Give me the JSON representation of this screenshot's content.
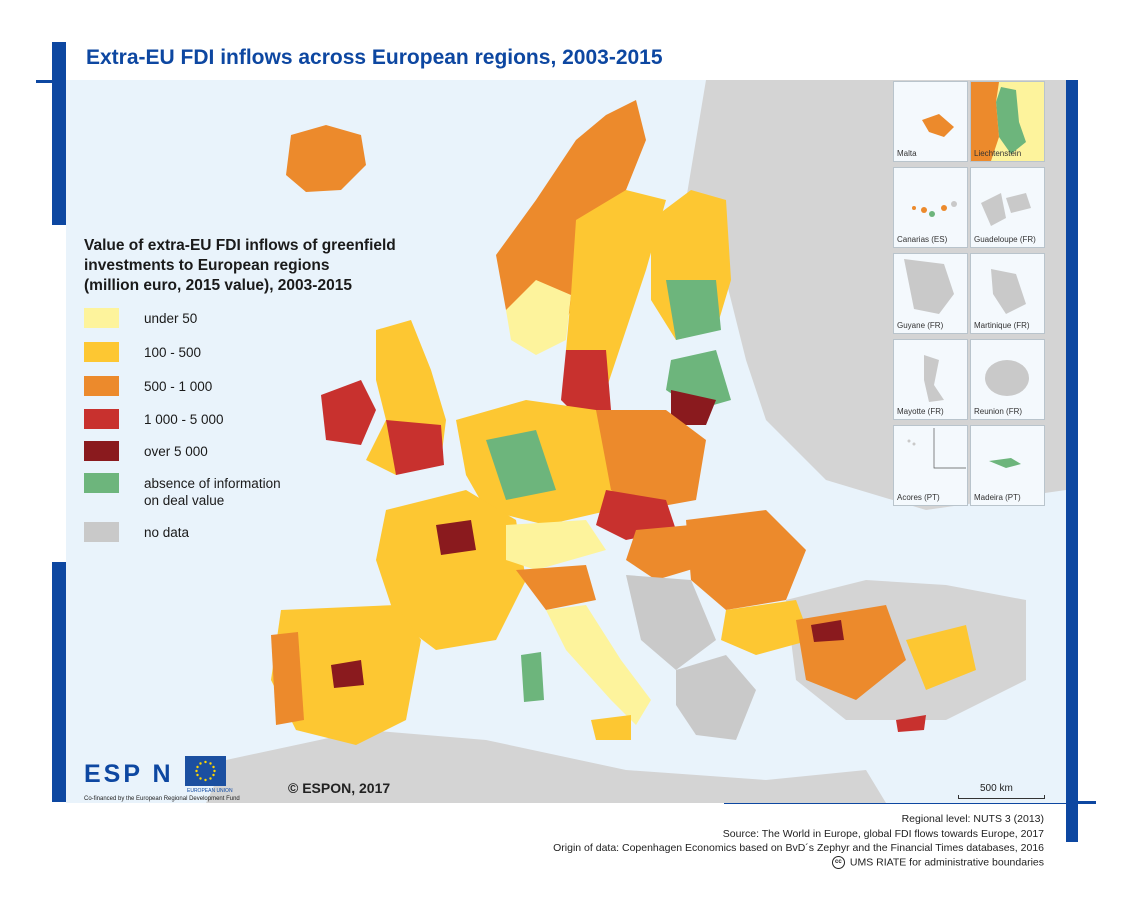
{
  "title": "Extra-EU FDI inflows across European regions, 2003-2015",
  "legend": {
    "title_lines": [
      "Value of extra-EU FDI inflows of greenfield",
      "investments to European regions",
      "(million euro, 2015 value), 2003-2015"
    ],
    "items": [
      {
        "label": "under 50",
        "label2": "",
        "color": "#fdf39c"
      },
      {
        "label": "100 - 500",
        "label2": "",
        "color": "#fdc732"
      },
      {
        "label": "500 - 1 000",
        "label2": "",
        "color": "#ec8a2c"
      },
      {
        "label": "1 000 - 5 000",
        "label2": "",
        "color": "#c8312e"
      },
      {
        "label": "over 5 000",
        "label2": "",
        "color": "#8a1a1e"
      },
      {
        "label": "absence of information",
        "label2": "on deal value",
        "color": "#6db57c"
      },
      {
        "label": "no data",
        "label2": "",
        "color": "#c9c9c9"
      }
    ]
  },
  "insets": [
    {
      "label": "Malta"
    },
    {
      "label": "Liechtenstein"
    },
    {
      "label": "Canarias (ES)"
    },
    {
      "label": "Guadeloupe (FR)"
    },
    {
      "label": "Guyane (FR)"
    },
    {
      "label": "Martinique (FR)"
    },
    {
      "label": "Mayotte (FR)"
    },
    {
      "label": "Reunion (FR)"
    },
    {
      "label": "Acores (PT)"
    },
    {
      "label": "Madeira (PT)"
    }
  ],
  "copyright": "© ESPON, 2017",
  "scale": "500 km",
  "logo": {
    "espon": "ESP N",
    "eu": "EUROPEAN UNION",
    "cofinanced": "Co-financed by the European Regional Development Fund"
  },
  "sources": {
    "regional_level": "Regional level: NUTS 3 (2013)",
    "source": "Source: The World in Europe, global FDI flows towards Europe, 2017",
    "origin": "Origin of data: Copenhagen Economics based on BvD´s Zephyr and the Financial Times databases, 2016",
    "boundaries": "UMS RIATE for administrative boundaries",
    "cc": "cc"
  },
  "colors": {
    "accent": "#0d47a1",
    "sea": "#e9f3fb",
    "land_outside": "#d4d4d4"
  }
}
